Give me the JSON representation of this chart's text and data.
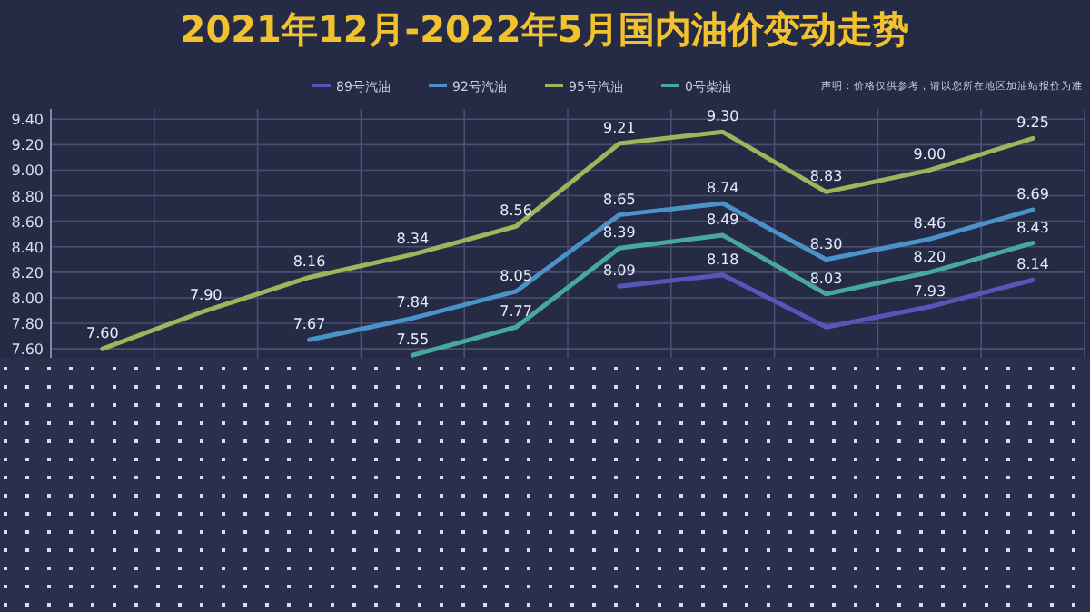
{
  "chart_data": {
    "type": "line",
    "title": "2021年12月-2022年5月国内油价变动走势",
    "annotations": [
      "声明：价格仅供参考，请以您所在地区加油站报价为准"
    ],
    "categories": [
      null,
      null,
      null,
      null,
      null,
      null,
      null,
      null,
      null,
      null
    ],
    "ylim": [
      7.53,
      9.48
    ],
    "yticks": [
      {
        "value": 7.6,
        "label": "7.60"
      },
      {
        "value": 7.8,
        "label": "7.80"
      },
      {
        "value": 8.0,
        "label": "8.00"
      },
      {
        "value": 8.2,
        "label": "8.20"
      },
      {
        "value": 8.4,
        "label": "8.40"
      },
      {
        "value": 8.6,
        "label": "8.60"
      },
      {
        "value": 8.8,
        "label": "8.80"
      },
      {
        "value": 9.0,
        "label": "9.00"
      },
      {
        "value": 9.2,
        "label": "9.20"
      },
      {
        "value": 9.4,
        "label": "9.40"
      }
    ],
    "grid": true,
    "legend": "top",
    "marker": "none",
    "series": [
      {
        "name": "89号汽油",
        "color": "#5457b8",
        "values": [
          null,
          null,
          null,
          null,
          null,
          8.09,
          8.18,
          7.77,
          7.93,
          8.14
        ],
        "value_labels": [
          null,
          null,
          null,
          null,
          null,
          "8.09",
          "8.18",
          null,
          "7.93",
          "8.14"
        ]
      },
      {
        "name": "92号汽油",
        "color": "#4a92c8",
        "values": [
          null,
          null,
          7.67,
          7.84,
          8.05,
          8.65,
          8.74,
          8.3,
          8.46,
          8.69
        ],
        "value_labels": [
          null,
          null,
          "7.67",
          "7.84",
          "8.05",
          "8.65",
          "8.74",
          "8.30",
          "8.46",
          "8.69"
        ]
      },
      {
        "name": "95号汽油",
        "color": "#98b85c",
        "values": [
          7.6,
          7.9,
          8.16,
          8.34,
          8.56,
          9.21,
          9.3,
          8.83,
          9.0,
          9.25
        ],
        "value_labels": [
          "7.60",
          "7.90",
          "8.16",
          "8.34",
          "8.56",
          "9.21",
          "9.30",
          "8.83",
          "9.00",
          "9.25"
        ]
      },
      {
        "name": "0号柴油",
        "color": "#48a8a0",
        "values": [
          null,
          null,
          null,
          7.55,
          7.77,
          8.39,
          8.49,
          8.03,
          8.2,
          8.43
        ],
        "value_labels": [
          null,
          null,
          null,
          "7.55",
          "7.77",
          "8.39",
          "8.49",
          "8.03",
          "8.20",
          "8.43"
        ]
      }
    ]
  }
}
